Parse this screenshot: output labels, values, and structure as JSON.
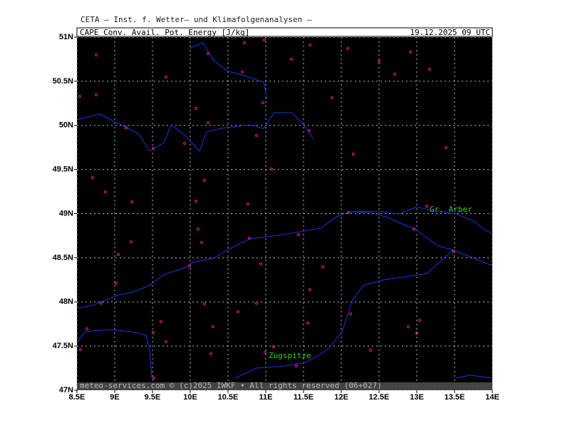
{
  "header": {
    "title": "CETA — Inst. f. Wetter— und Klimafolgenanalysen —",
    "field": "CAPE_Conv._Avail._Pot._Energy_[J/kg]",
    "time": "19.12.2025 09 UTC"
  },
  "map": {
    "xlim": [
      8.5,
      14
    ],
    "ylim": [
      47,
      51
    ],
    "xticks": [
      {
        "value": 8.5,
        "label": "8.5E"
      },
      {
        "value": 9,
        "label": "9E"
      },
      {
        "value": 9.5,
        "label": "9.5E"
      },
      {
        "value": 10,
        "label": "10E"
      },
      {
        "value": 10.5,
        "label": "10.5E"
      },
      {
        "value": 11,
        "label": "11E"
      },
      {
        "value": 11.5,
        "label": "11.5E"
      },
      {
        "value": 12,
        "label": "12E"
      },
      {
        "value": 12.5,
        "label": "12.5E"
      },
      {
        "value": 13,
        "label": "13E"
      },
      {
        "value": 13.5,
        "label": "13.5E"
      },
      {
        "value": 14,
        "label": "14E"
      }
    ],
    "yticks": [
      {
        "value": 47,
        "label": "47N"
      },
      {
        "value": 47.5,
        "label": "47.5N"
      },
      {
        "value": 48,
        "label": "48N"
      },
      {
        "value": 48.5,
        "label": "48.5N"
      },
      {
        "value": 49,
        "label": "49N"
      },
      {
        "value": 49.5,
        "label": "49.5N"
      },
      {
        "value": 50,
        "label": "50N"
      },
      {
        "value": 50.5,
        "label": "50.5N"
      },
      {
        "value": 51,
        "label": "51N"
      }
    ],
    "places": [
      "Gr. Arber",
      "Zugspitze"
    ],
    "footer": "meteo-services.com © (c)2025 IWKF • All rights reserved (06+027)"
  }
}
